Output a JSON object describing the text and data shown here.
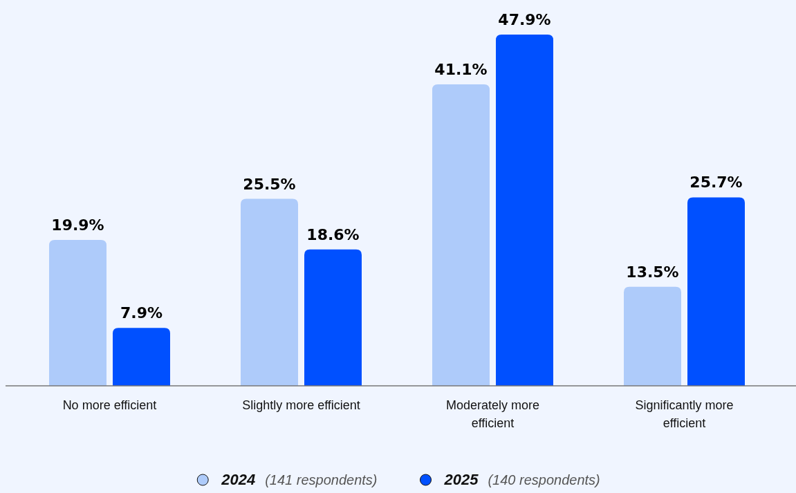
{
  "chart_data": {
    "type": "bar",
    "categories": [
      "No more efficient",
      "Slightly more efficient",
      "Moderately more efficient",
      "Significantly more efficient"
    ],
    "series": [
      {
        "name": "2024 (141 respondents)",
        "color": "#aecbfa",
        "values": [
          19.9,
          25.5,
          41.1,
          13.5
        ],
        "value_labels": [
          "19.9%",
          "25.5%",
          "41.1%",
          "13.5%"
        ]
      },
      {
        "name": "2025 (140 respondents)",
        "color": "#0050ff",
        "values": [
          7.9,
          18.6,
          47.9,
          25.7
        ],
        "value_labels": [
          "7.9%",
          "18.6%",
          "47.9%",
          "25.7%"
        ]
      }
    ],
    "legend": "bottom"
  }
}
